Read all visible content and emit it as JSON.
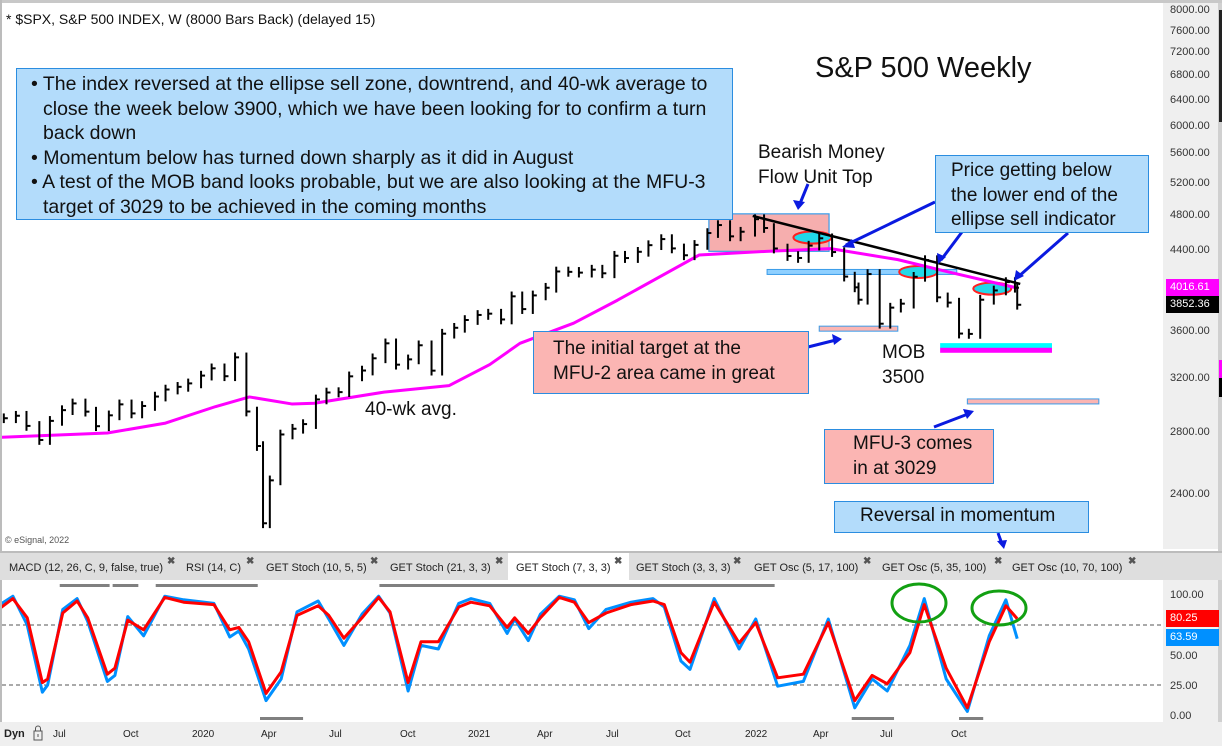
{
  "header": {
    "title": "* $SPX, S&P 500 INDEX, W (8000 Bars Back) (delayed 15)",
    "copyright": "© eSignal, 2022"
  },
  "annotations": {
    "chart_title": "S&P 500 Weekly",
    "bullets": [
      "• The index reversed at the ellipse sell zone, downtrend, and 40-wk average to close the week below 3900, which we have been looking for to confirm a turn back down",
      "• Momentum below has turned down sharply as it did in August",
      "• A test of the MOB band looks probable, but we are also looking at the MFU-3 target of 3029 to be achieved in the coming months"
    ],
    "bearish_line1": "Bearish Money",
    "bearish_line2": "Flow Unit Top",
    "price_below_line1": "Price getting below",
    "price_below_line2": "the lower end of the",
    "price_below_line3": "ellipse sell indicator",
    "initial_line1": "The initial target at the",
    "initial_line2": "MFU-2 area came in great",
    "mob_line1": "MOB",
    "mob_line2": "3500",
    "mfu3_line1": "MFU-3 comes",
    "mfu3_line2": "in at 3029",
    "reversal": "Reversal in momentum",
    "ma_label": "40-wk avg."
  },
  "tabs": [
    {
      "label": "MACD (12, 26, C, 9, false, true)",
      "close": "✖"
    },
    {
      "label": "RSI (14, C)",
      "close": "✖"
    },
    {
      "label": "GET Stoch (10, 5, 5)",
      "close": "✖"
    },
    {
      "label": "GET Stoch (21, 3, 3)",
      "close": "✖"
    },
    {
      "label": "GET Stoch (7, 3, 3)",
      "close": "✖",
      "active": true
    },
    {
      "label": "GET Stoch (3, 3, 3)",
      "close": "✖"
    },
    {
      "label": "GET Osc (5, 17, 100)",
      "close": "✖"
    },
    {
      "label": "GET Osc (5, 35, 100)",
      "close": "✖"
    },
    {
      "label": "GET Osc (10, 70, 100)",
      "close": "✖"
    }
  ],
  "price_axis": {
    "ticks": [
      "8000.00",
      "7600.00",
      "7200.00",
      "6800.00",
      "6400.00",
      "6000.00",
      "5600.00",
      "5200.00",
      "4800.00",
      "4400.00",
      "3600.00",
      "3200.00",
      "2800.00",
      "2400.00"
    ],
    "ma_last": "4016.61",
    "close_last": "3852.36",
    "ma_color": "#ff00ff",
    "close_color": "#000000"
  },
  "osc_axis": {
    "ticks": [
      "100.00",
      "50.00",
      "25.00",
      "0.00"
    ],
    "red_last": "80.25",
    "blue_last": "63.59",
    "red_color": "#ff0000",
    "blue_color": "#0090ff"
  },
  "x_axis": {
    "dyn": "Dyn",
    "ticks": [
      "Jul",
      "Oct",
      "2020",
      "Apr",
      "Jul",
      "Oct",
      "2021",
      "Apr",
      "Jul",
      "Oct",
      "2022",
      "Apr",
      "Jul",
      "Oct"
    ]
  },
  "chart_data": [
    {
      "type": "line",
      "title": "",
      "scale": "log",
      "ylim": [
        2100,
        8100
      ],
      "series": [
        {
          "name": "$SPX",
          "color": "#000000",
          "x": [
            "2019-04-15",
            "2019-05-01",
            "2019-05-15",
            "2019-06-01",
            "2019-06-15",
            "2019-07-01",
            "2019-07-15",
            "2019-08-01",
            "2019-08-15",
            "2019-09-01",
            "2019-09-15",
            "2019-10-01",
            "2019-10-15",
            "2019-11-01",
            "2019-11-15",
            "2019-12-01",
            "2019-12-15",
            "2020-01-01",
            "2020-01-15",
            "2020-02-01",
            "2020-02-15",
            "2020-03-01",
            "2020-03-15",
            "2020-03-23",
            "2020-04-01",
            "2020-04-15",
            "2020-05-01",
            "2020-05-15",
            "2020-06-01",
            "2020-06-15",
            "2020-07-01",
            "2020-07-15",
            "2020-08-01",
            "2020-08-15",
            "2020-09-01",
            "2020-09-15",
            "2020-10-01",
            "2020-10-15",
            "2020-11-01",
            "2020-11-15",
            "2020-12-01",
            "2020-12-15",
            "2021-01-01",
            "2021-01-15",
            "2021-02-01",
            "2021-02-15",
            "2021-03-01",
            "2021-03-15",
            "2021-04-01",
            "2021-04-15",
            "2021-05-01",
            "2021-05-15",
            "2021-06-01",
            "2021-06-15",
            "2021-07-01",
            "2021-07-15",
            "2021-08-01",
            "2021-08-15",
            "2021-09-01",
            "2021-09-15",
            "2021-10-01",
            "2021-10-15",
            "2021-11-01",
            "2021-11-15",
            "2021-12-01",
            "2021-12-15",
            "2022-01-03",
            "2022-01-15",
            "2022-01-28",
            "2022-02-15",
            "2022-03-01",
            "2022-03-15",
            "2022-03-29",
            "2022-04-15",
            "2022-05-01",
            "2022-05-15",
            "2022-05-20",
            "2022-06-01",
            "2022-06-17",
            "2022-07-01",
            "2022-07-15",
            "2022-08-01",
            "2022-08-16",
            "2022-09-01",
            "2022-09-15",
            "2022-09-30",
            "2022-10-13",
            "2022-10-28",
            "2022-11-15",
            "2022-12-01",
            "2022-12-13",
            "2022-12-16"
          ],
          "values": [
            2905,
            2923,
            2850,
            2752,
            2886,
            2964,
            3014,
            2953,
            2848,
            2926,
            3007,
            2940,
            2995,
            3066,
            3120,
            3141,
            3168,
            3230,
            3289,
            3225,
            3380,
            2954,
            2711,
            2237,
            2489,
            2790,
            2830,
            2863,
            3044,
            3097,
            3100,
            3224,
            3271,
            3372,
            3500,
            3319,
            3363,
            3483,
            3270,
            3585,
            3638,
            3709,
            3756,
            3768,
            3714,
            3934,
            3811,
            3943,
            4019,
            4185,
            4181,
            4173,
            4204,
            4166,
            4352,
            4327,
            4395,
            4468,
            4536,
            4432,
            4357,
            4471,
            4605,
            4697,
            4567,
            4620,
            4766,
            4663,
            4431,
            4349,
            4328,
            4463,
            4545,
            4392,
            4132,
            4023,
            3901,
            4158,
            3675,
            3825,
            3863,
            4130,
            4305,
            3924,
            3873,
            3586,
            3583,
            3901,
            3992,
            4076,
            4019,
            3852.36
          ]
        },
        {
          "name": "40-wk avg.",
          "color": "#ff00ff",
          "x": [
            "2019-04-10",
            "2019-08-30",
            "2019-11-15",
            "2020-01-20",
            "2020-03-05",
            "2020-04-30",
            "2020-05-30",
            "2020-08-30",
            "2020-11-24",
            "2021-01-17",
            "2021-02-26",
            "2021-05-08",
            "2021-07-05",
            "2021-10-21",
            "2022-01-18",
            "2022-04-13",
            "2022-07-11",
            "2022-09-16",
            "2022-12-16"
          ],
          "values": [
            2770,
            2800,
            2870,
            2990,
            3063,
            3010,
            3015,
            3100,
            3150,
            3320,
            3500,
            3680,
            3896,
            4360,
            4400,
            4430,
            4310,
            4180,
            4016.61
          ]
        }
      ],
      "bands": [
        {
          "name": "support-band",
          "from": "2022-01-19",
          "to": "2022-09-27",
          "price": 4180,
          "color": "#8fd0ff"
        },
        {
          "name": "mfu2-band",
          "from": "2022-03-29",
          "to": "2022-07-11",
          "price": 3630,
          "color": "#fbb5b3"
        },
        {
          "name": "mob-band-upper",
          "from": "2022-09-05",
          "to": "2023-01-31",
          "price": 3480,
          "color": "#00ffff"
        },
        {
          "name": "mob-band-lower",
          "from": "2022-09-05",
          "to": "2023-01-31",
          "price": 3440,
          "color": "#ff00ff"
        },
        {
          "name": "mfu3-band",
          "from": "2022-10-11",
          "to": "2023-04-03",
          "price": 3029,
          "color": "#fbb5b3"
        }
      ],
      "bearish_zone": {
        "from": "2021-11-03",
        "to": "2022-04-11",
        "high": 4830,
        "low": 4400,
        "color": "#f4a0a0"
      },
      "ellipses": [
        {
          "date": "2022-03-20",
          "price": 4554
        },
        {
          "date": "2022-08-07",
          "price": 4180
        },
        {
          "date": "2022-11-13",
          "price": 4010
        }
      ],
      "trendline": {
        "from": {
          "date": "2021-12-31",
          "price": 4805
        },
        "to": {
          "date": "2022-12-20",
          "price": 4057
        }
      }
    },
    {
      "type": "line",
      "title": "GET Stoch (7, 3, 3)",
      "ylim": [
        0,
        100
      ],
      "reference_lines": [
        75,
        25
      ],
      "series": [
        {
          "name": "",
          "color": "#0090ff",
          "x": [
            "2019-04-10",
            "2019-04-27",
            "2019-05-16",
            "2019-06-05",
            "2019-06-12",
            "2019-07-02",
            "2019-07-21",
            "2019-08-04",
            "2019-08-30",
            "2019-09-09",
            "2019-09-26",
            "2019-10-17",
            "2019-11-14",
            "2019-12-09",
            "2020-01-18",
            "2020-02-08",
            "2020-02-20",
            "2020-03-04",
            "2020-03-27",
            "2020-04-16",
            "2020-05-07",
            "2020-06-04",
            "2020-06-18",
            "2020-07-08",
            "2020-08-01",
            "2020-08-23",
            "2020-09-07",
            "2020-10-01",
            "2020-10-18",
            "2020-11-10",
            "2020-12-07",
            "2020-12-23",
            "2021-01-17",
            "2021-02-09",
            "2021-02-19",
            "2021-03-09",
            "2021-03-25",
            "2021-04-19",
            "2021-05-09",
            "2021-05-28",
            "2021-06-20",
            "2021-07-23",
            "2021-08-21",
            "2021-09-05",
            "2021-09-27",
            "2021-10-09",
            "2021-11-10",
            "2021-12-13",
            "2022-01-04",
            "2022-02-02",
            "2022-03-08",
            "2022-04-10",
            "2022-05-15",
            "2022-06-07",
            "2022-06-27",
            "2022-07-27",
            "2022-08-15",
            "2022-09-13",
            "2022-10-11",
            "2022-11-09",
            "2022-12-01",
            "2022-12-16"
          ],
          "values": [
            92,
            99,
            75,
            19,
            25,
            88,
            97,
            78,
            28,
            33,
            82,
            66,
            99,
            96,
            93,
            65,
            70,
            55,
            12,
            30,
            86,
            95,
            80,
            58,
            84,
            99,
            85,
            20,
            58,
            55,
            93,
            97,
            93,
            68,
            80,
            62,
            84,
            99,
            96,
            72,
            88,
            94,
            97,
            90,
            45,
            38,
            97,
            55,
            80,
            24,
            28,
            80,
            6,
            30,
            20,
            58,
            97,
            30,
            3,
            66,
            96,
            63.59
          ]
        },
        {
          "name": "",
          "color": "#ff0000",
          "x": [
            "2019-04-10",
            "2019-04-27",
            "2019-05-16",
            "2019-06-05",
            "2019-06-12",
            "2019-07-02",
            "2019-07-21",
            "2019-08-04",
            "2019-08-30",
            "2019-09-09",
            "2019-09-26",
            "2019-10-17",
            "2019-11-14",
            "2019-12-09",
            "2020-01-18",
            "2020-02-08",
            "2020-02-20",
            "2020-03-04",
            "2020-03-27",
            "2020-04-16",
            "2020-05-07",
            "2020-06-04",
            "2020-06-18",
            "2020-07-08",
            "2020-08-01",
            "2020-08-23",
            "2020-09-07",
            "2020-10-01",
            "2020-10-18",
            "2020-11-10",
            "2020-12-07",
            "2020-12-23",
            "2021-01-17",
            "2021-02-09",
            "2021-02-19",
            "2021-03-09",
            "2021-03-25",
            "2021-04-19",
            "2021-05-09",
            "2021-05-28",
            "2021-06-20",
            "2021-07-23",
            "2021-08-21",
            "2021-09-05",
            "2021-09-27",
            "2021-10-09",
            "2021-11-10",
            "2021-12-13",
            "2022-01-04",
            "2022-02-02",
            "2022-03-08",
            "2022-04-10",
            "2022-05-15",
            "2022-06-07",
            "2022-06-27",
            "2022-07-27",
            "2022-08-15",
            "2022-09-13",
            "2022-10-11",
            "2022-11-09",
            "2022-12-01",
            "2022-12-16"
          ],
          "values": [
            89,
            97,
            81,
            27,
            30,
            85,
            95,
            81,
            34,
            39,
            79,
            71,
            98,
            94,
            92,
            71,
            73,
            61,
            18,
            36,
            83,
            91,
            83,
            64,
            81,
            98,
            86,
            27,
            61,
            61,
            90,
            94,
            91,
            73,
            81,
            68,
            81,
            98,
            94,
            77,
            85,
            92,
            95,
            92,
            52,
            44,
            94,
            60,
            77,
            31,
            34,
            77,
            12,
            33,
            26,
            52,
            92,
            39,
            6,
            61,
            91,
            80.25
          ]
        }
      ],
      "overbought_periods": [
        [
          "2019-06-28",
          "2019-09-02"
        ],
        [
          "2019-09-06",
          "2019-10-10"
        ],
        [
          "2019-11-02",
          "2020-03-16"
        ],
        [
          "2020-08-24",
          "2022-01-29"
        ]
      ],
      "oversold_periods": [
        [
          "2020-03-19",
          "2020-05-15"
        ],
        [
          "2022-05-11",
          "2022-07-06"
        ],
        [
          "2022-09-30",
          "2022-11-01"
        ]
      ]
    }
  ]
}
